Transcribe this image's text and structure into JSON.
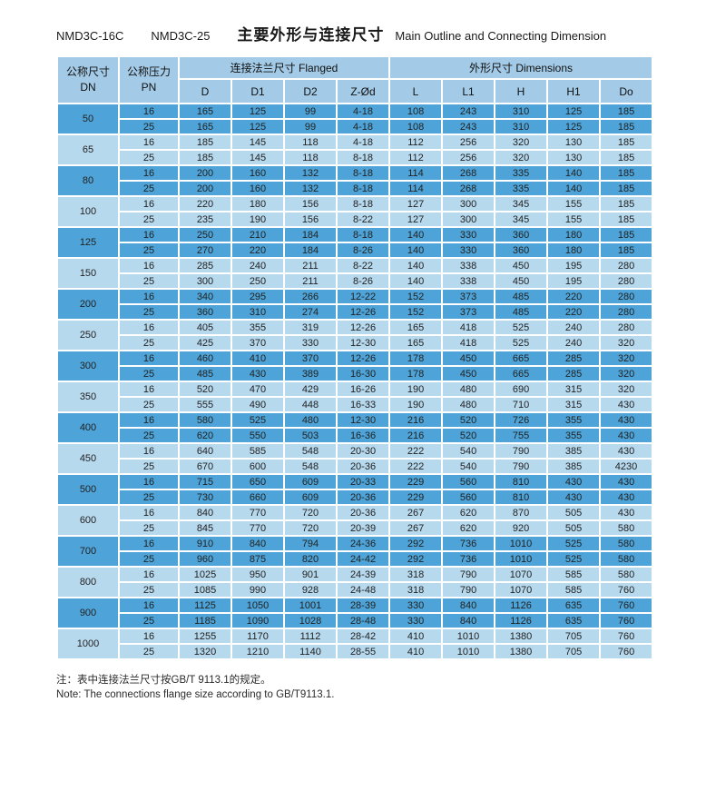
{
  "title": {
    "model_1": "NMD3C-16C",
    "model_2": "NMD3C-25",
    "cn": "主要外形与连接尺寸",
    "en": "Main Outline and Connecting Dimension"
  },
  "colors": {
    "row_dark": "#4ea4d8",
    "row_light": "#b7d9ee",
    "header": "#a3cae6"
  },
  "table": {
    "header": {
      "dn_cn": "公称尺寸",
      "dn_en": "DN",
      "pn_cn": "公称压力",
      "pn_en": "PN",
      "flanged_group": "连接法兰尺寸 Flanged",
      "dimensions_group": "外形尺寸 Dimensions",
      "columns": [
        "D",
        "D1",
        "D2",
        "Z-Ød",
        "L",
        "L1",
        "H",
        "H1",
        "Do"
      ]
    },
    "groups": [
      {
        "dn": "50",
        "rows": [
          [
            "16",
            "165",
            "125",
            "99",
            "4-18",
            "108",
            "243",
            "310",
            "125",
            "185"
          ],
          [
            "25",
            "165",
            "125",
            "99",
            "4-18",
            "108",
            "243",
            "310",
            "125",
            "185"
          ]
        ]
      },
      {
        "dn": "65",
        "rows": [
          [
            "16",
            "185",
            "145",
            "118",
            "4-18",
            "112",
            "256",
            "320",
            "130",
            "185"
          ],
          [
            "25",
            "185",
            "145",
            "118",
            "8-18",
            "112",
            "256",
            "320",
            "130",
            "185"
          ]
        ]
      },
      {
        "dn": "80",
        "rows": [
          [
            "16",
            "200",
            "160",
            "132",
            "8-18",
            "114",
            "268",
            "335",
            "140",
            "185"
          ],
          [
            "25",
            "200",
            "160",
            "132",
            "8-18",
            "114",
            "268",
            "335",
            "140",
            "185"
          ]
        ]
      },
      {
        "dn": "100",
        "rows": [
          [
            "16",
            "220",
            "180",
            "156",
            "8-18",
            "127",
            "300",
            "345",
            "155",
            "185"
          ],
          [
            "25",
            "235",
            "190",
            "156",
            "8-22",
            "127",
            "300",
            "345",
            "155",
            "185"
          ]
        ]
      },
      {
        "dn": "125",
        "rows": [
          [
            "16",
            "250",
            "210",
            "184",
            "8-18",
            "140",
            "330",
            "360",
            "180",
            "185"
          ],
          [
            "25",
            "270",
            "220",
            "184",
            "8-26",
            "140",
            "330",
            "360",
            "180",
            "185"
          ]
        ]
      },
      {
        "dn": "150",
        "rows": [
          [
            "16",
            "285",
            "240",
            "211",
            "8-22",
            "140",
            "338",
            "450",
            "195",
            "280"
          ],
          [
            "25",
            "300",
            "250",
            "211",
            "8-26",
            "140",
            "338",
            "450",
            "195",
            "280"
          ]
        ]
      },
      {
        "dn": "200",
        "rows": [
          [
            "16",
            "340",
            "295",
            "266",
            "12-22",
            "152",
            "373",
            "485",
            "220",
            "280"
          ],
          [
            "25",
            "360",
            "310",
            "274",
            "12-26",
            "152",
            "373",
            "485",
            "220",
            "280"
          ]
        ]
      },
      {
        "dn": "250",
        "rows": [
          [
            "16",
            "405",
            "355",
            "319",
            "12-26",
            "165",
            "418",
            "525",
            "240",
            "280"
          ],
          [
            "25",
            "425",
            "370",
            "330",
            "12-30",
            "165",
            "418",
            "525",
            "240",
            "320"
          ]
        ]
      },
      {
        "dn": "300",
        "rows": [
          [
            "16",
            "460",
            "410",
            "370",
            "12-26",
            "178",
            "450",
            "665",
            "285",
            "320"
          ],
          [
            "25",
            "485",
            "430",
            "389",
            "16-30",
            "178",
            "450",
            "665",
            "285",
            "320"
          ]
        ]
      },
      {
        "dn": "350",
        "rows": [
          [
            "16",
            "520",
            "470",
            "429",
            "16-26",
            "190",
            "480",
            "690",
            "315",
            "320"
          ],
          [
            "25",
            "555",
            "490",
            "448",
            "16-33",
            "190",
            "480",
            "710",
            "315",
            "430"
          ]
        ]
      },
      {
        "dn": "400",
        "rows": [
          [
            "16",
            "580",
            "525",
            "480",
            "12-30",
            "216",
            "520",
            "726",
            "355",
            "430"
          ],
          [
            "25",
            "620",
            "550",
            "503",
            "16-36",
            "216",
            "520",
            "755",
            "355",
            "430"
          ]
        ]
      },
      {
        "dn": "450",
        "rows": [
          [
            "16",
            "640",
            "585",
            "548",
            "20-30",
            "222",
            "540",
            "790",
            "385",
            "430"
          ],
          [
            "25",
            "670",
            "600",
            "548",
            "20-36",
            "222",
            "540",
            "790",
            "385",
            "4230"
          ]
        ]
      },
      {
        "dn": "500",
        "rows": [
          [
            "16",
            "715",
            "650",
            "609",
            "20-33",
            "229",
            "560",
            "810",
            "430",
            "430"
          ],
          [
            "25",
            "730",
            "660",
            "609",
            "20-36",
            "229",
            "560",
            "810",
            "430",
            "430"
          ]
        ]
      },
      {
        "dn": "600",
        "rows": [
          [
            "16",
            "840",
            "770",
            "720",
            "20-36",
            "267",
            "620",
            "870",
            "505",
            "430"
          ],
          [
            "25",
            "845",
            "770",
            "720",
            "20-39",
            "267",
            "620",
            "920",
            "505",
            "580"
          ]
        ]
      },
      {
        "dn": "700",
        "rows": [
          [
            "16",
            "910",
            "840",
            "794",
            "24-36",
            "292",
            "736",
            "1010",
            "525",
            "580"
          ],
          [
            "25",
            "960",
            "875",
            "820",
            "24-42",
            "292",
            "736",
            "1010",
            "525",
            "580"
          ]
        ]
      },
      {
        "dn": "800",
        "rows": [
          [
            "16",
            "1025",
            "950",
            "901",
            "24-39",
            "318",
            "790",
            "1070",
            "585",
            "580"
          ],
          [
            "25",
            "1085",
            "990",
            "928",
            "24-48",
            "318",
            "790",
            "1070",
            "585",
            "760"
          ]
        ]
      },
      {
        "dn": "900",
        "rows": [
          [
            "16",
            "1125",
            "1050",
            "1001",
            "28-39",
            "330",
            "840",
            "1126",
            "635",
            "760"
          ],
          [
            "25",
            "1185",
            "1090",
            "1028",
            "28-48",
            "330",
            "840",
            "1126",
            "635",
            "760"
          ]
        ]
      },
      {
        "dn": "1000",
        "rows": [
          [
            "16",
            "1255",
            "1170",
            "1112",
            "28-42",
            "410",
            "1010",
            "1380",
            "705",
            "760"
          ],
          [
            "25",
            "1320",
            "1210",
            "1140",
            "28-55",
            "410",
            "1010",
            "1380",
            "705",
            "760"
          ]
        ]
      }
    ]
  },
  "notes": {
    "cn": "注：表中连接法兰尺寸按GB/T 9113.1的规定。",
    "en": "Note: The connections flange size according to GB/T9113.1."
  }
}
